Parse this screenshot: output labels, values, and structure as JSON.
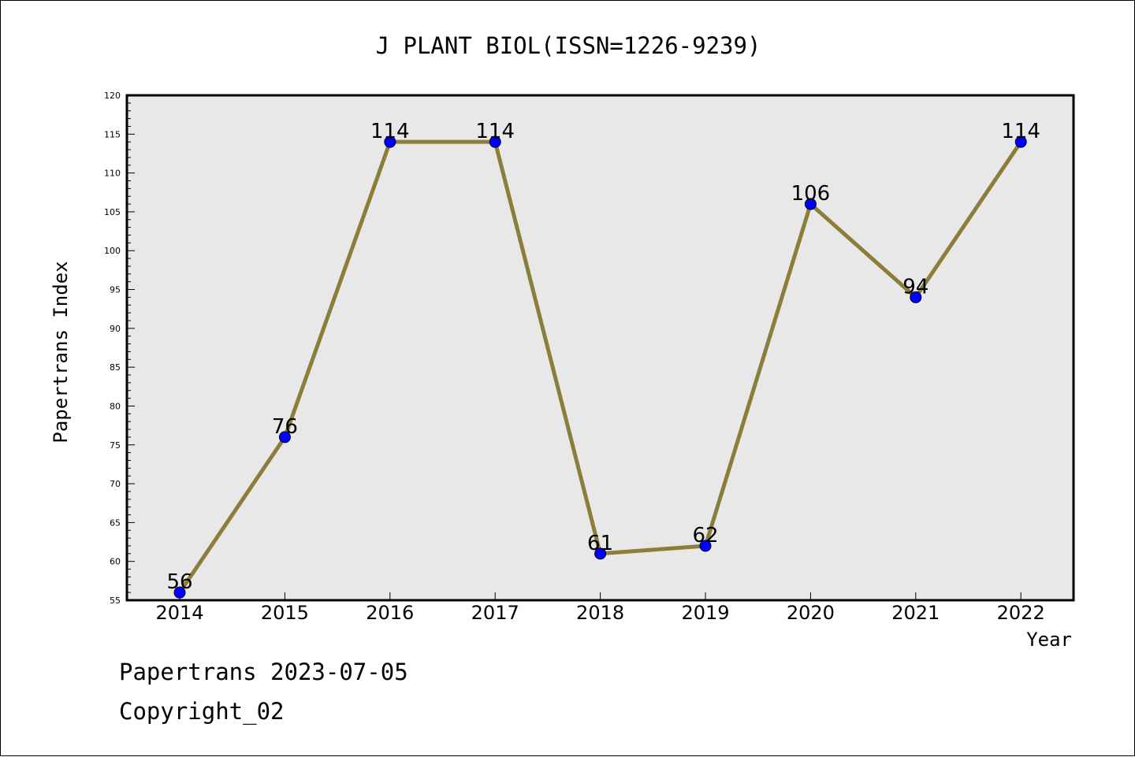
{
  "chart_data": {
    "type": "line",
    "title": "J PLANT BIOL(ISSN=1226-9239)",
    "xlabel": "Year",
    "ylabel": "Papertrans Index",
    "categories": [
      "2014",
      "2015",
      "2016",
      "2017",
      "2018",
      "2019",
      "2020",
      "2021",
      "2022"
    ],
    "series": [
      {
        "values": [
          56,
          76,
          114,
          114,
          61,
          62,
          106,
          94,
          114
        ],
        "labels": [
          "56",
          "76",
          "114",
          "114",
          "61",
          "62",
          "106",
          "94",
          "114"
        ]
      }
    ],
    "ylim": [
      55,
      120
    ],
    "yticks": [
      55,
      60,
      65,
      70,
      75,
      80,
      85,
      90,
      95,
      100,
      105,
      110,
      115,
      120
    ],
    "ytick_labels": [
      "55",
      "60",
      "65",
      "70",
      "75",
      "80",
      "85",
      "90",
      "95",
      "100",
      "105",
      "110",
      "115",
      "120"
    ],
    "grid": false,
    "legend": "none",
    "colors": {
      "plot_background": "#e8e8e8",
      "line": "#8b7d3a",
      "marker": "#0000ff"
    }
  },
  "footer": {
    "line1": "Papertrans 2023-07-05",
    "line2": "Copyright_02"
  }
}
